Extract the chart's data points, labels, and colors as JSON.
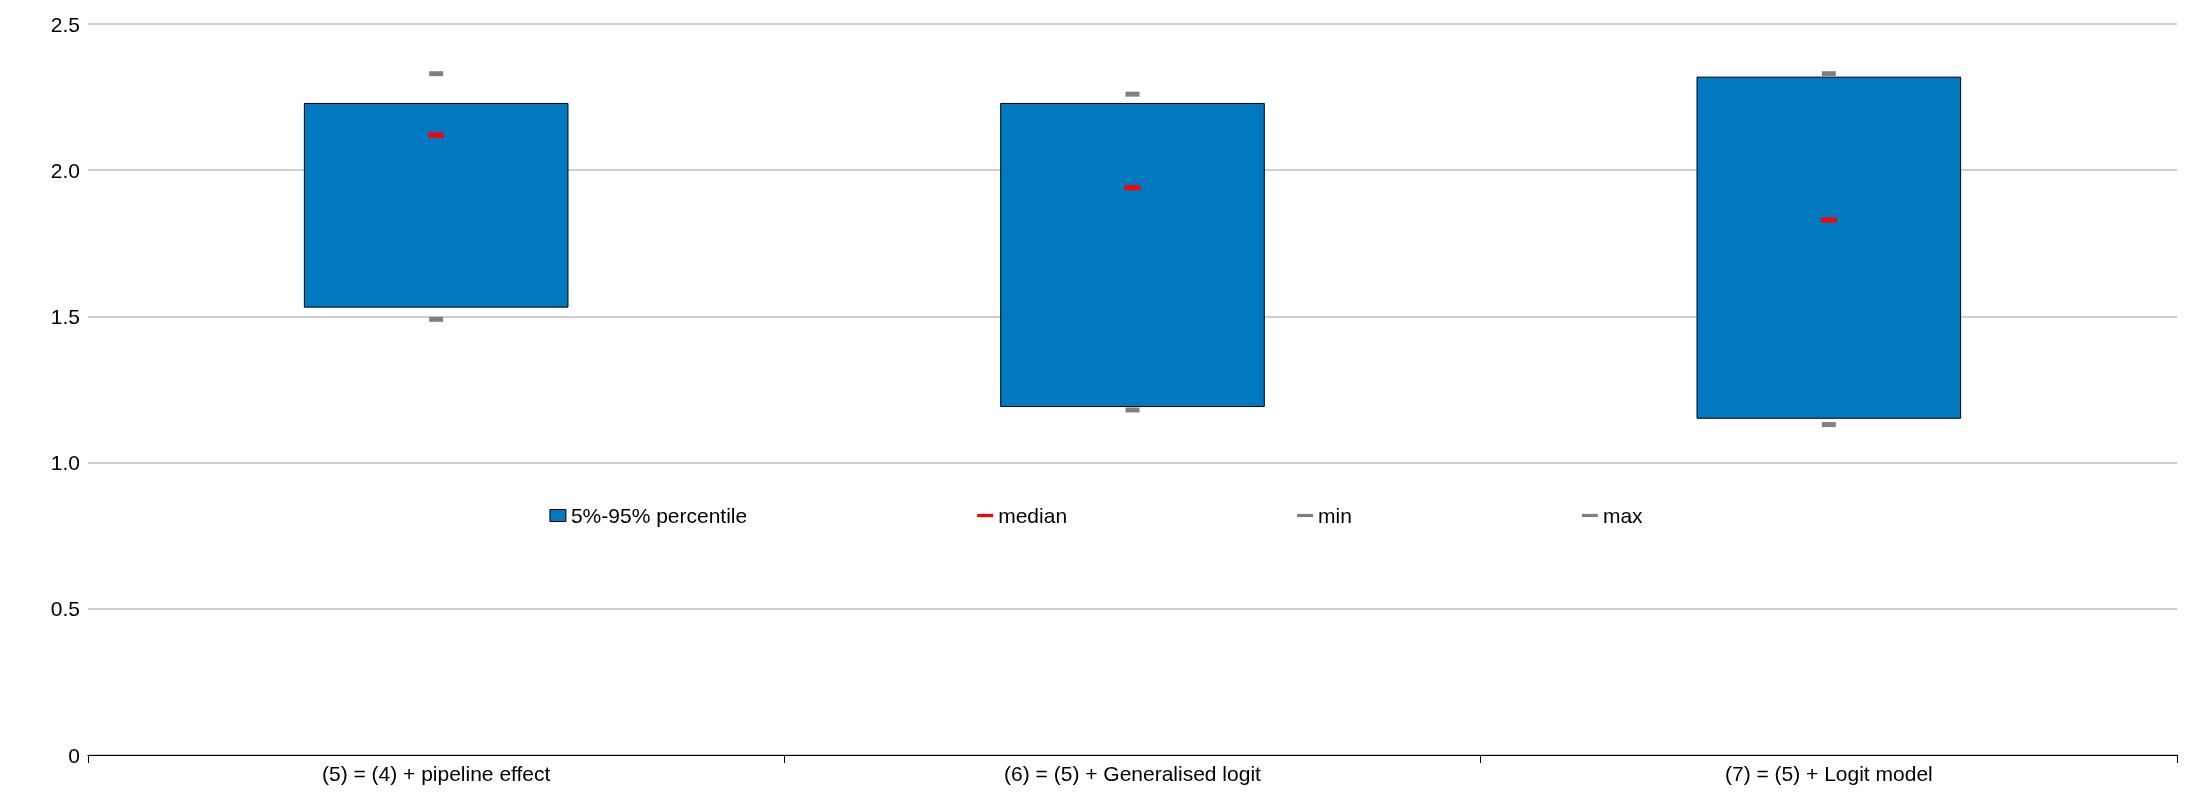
{
  "chart_data": {
    "type": "bar",
    "categories": [
      "(5) = (4) + pipeline effect",
      "(6) = (5) + Generalised logit",
      "(7) = (5) + Logit model"
    ],
    "series": [
      {
        "name": "5%-95% percentile",
        "color": "#0079c1",
        "base": [
          1.53,
          1.19,
          1.15
        ],
        "values": [
          0.7,
          1.04,
          1.17
        ]
      },
      {
        "name": "median",
        "type": "scatter",
        "color": "#ff0000",
        "x": [
          "(5) = (4) + pipeline effect",
          "(6) = (5) + Generalised logit",
          "(7) = (5) + Logit model"
        ],
        "values": [
          2.12,
          1.94,
          1.83
        ]
      },
      {
        "name": "min",
        "type": "scatter",
        "color": "#808080",
        "x": [
          "(5) = (4) + pipeline effect",
          "(6) = (5) + Generalised logit",
          "(7) = (5) + Logit model"
        ],
        "values": [
          1.49,
          1.18,
          1.13
        ]
      },
      {
        "name": "max",
        "type": "scatter",
        "color": "#808080",
        "x": [
          "(5) = (4) + pipeline effect",
          "(6) = (5) + Generalised logit",
          "(7) = (5) + Logit model"
        ],
        "values": [
          2.33,
          2.26,
          2.33
        ]
      }
    ],
    "ylim": [
      0,
      2.5
    ],
    "yticks": [
      {
        "value": 0,
        "label": "0"
      },
      {
        "value": 0.5,
        "label": "0.5"
      },
      {
        "value": 1,
        "label": "1.0"
      },
      {
        "value": 1.5,
        "label": "1.5"
      },
      {
        "value": 2,
        "label": "2.0"
      },
      {
        "value": 2.5,
        "label": "2.5"
      }
    ],
    "grid": "y",
    "legend": "center"
  }
}
